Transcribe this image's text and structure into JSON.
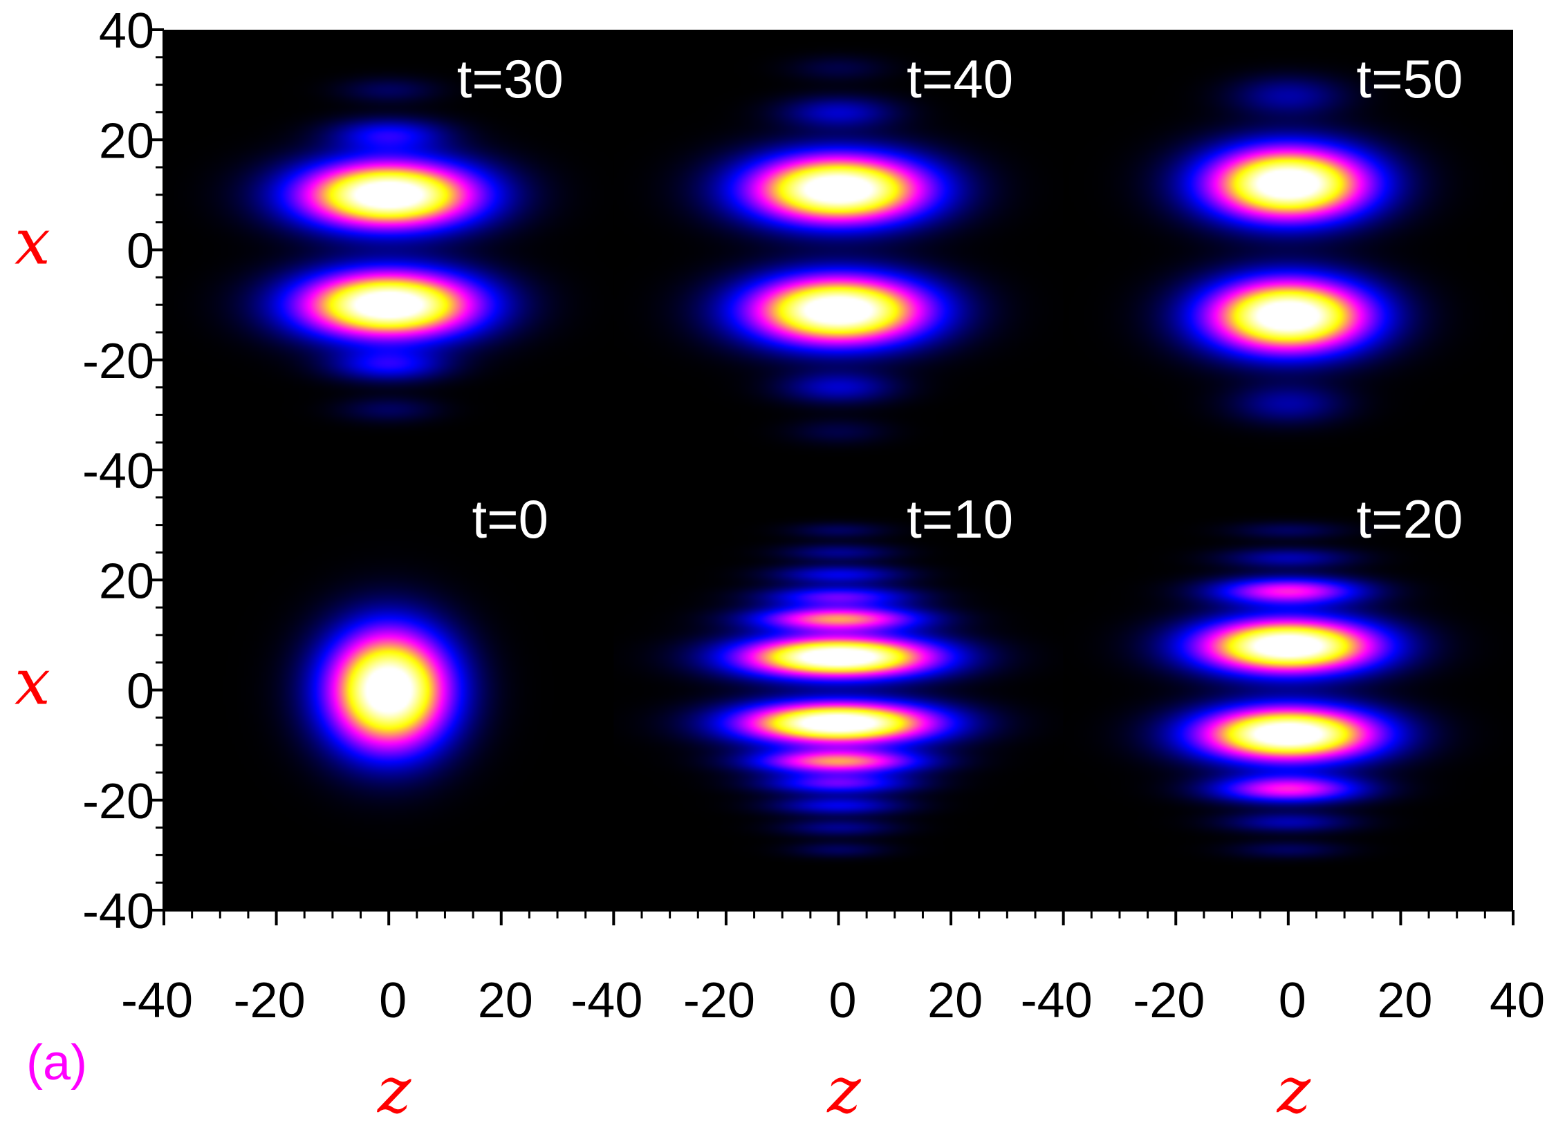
{
  "chart_data": {
    "type": "heatmap",
    "title": "",
    "panel_tag": "(a)",
    "colormap": [
      "#000000",
      "#0000ff",
      "#ff00ff",
      "#ffff00",
      "#ffffff"
    ],
    "colors": {
      "axis_label": "#ff0000",
      "panel_tag": "#ff00ff",
      "time_label": "#ffffff",
      "background": "#000000"
    },
    "grid": false,
    "x_axis": {
      "label": "z",
      "range": [
        -40,
        40
      ],
      "columns": [
        {
          "ticks": [
            "-40",
            "-20",
            "0",
            "20"
          ]
        },
        {
          "ticks": [
            "-40",
            "-20",
            "0",
            "20"
          ]
        },
        {
          "ticks": [
            "-40",
            "-20",
            "0",
            "20",
            "40"
          ]
        }
      ]
    },
    "y_axis": {
      "label": "x",
      "range": [
        -40,
        40
      ],
      "rows": [
        {
          "ticks": [
            "40",
            "20",
            "0",
            "-20",
            "-40"
          ]
        },
        {
          "ticks": [
            "20",
            "0",
            "-20",
            "-40"
          ]
        }
      ]
    },
    "panels": [
      {
        "time": "t=30",
        "row": 0,
        "col": 0,
        "blobs": [
          {
            "z": 0,
            "x": 10,
            "sz": 11,
            "sx": 4.2,
            "amp": 1.0
          },
          {
            "z": 0,
            "x": -10,
            "sz": 11,
            "sx": 4.2,
            "amp": 1.0
          },
          {
            "z": 0,
            "x": 21,
            "sz": 7,
            "sx": 2.0,
            "amp": 0.22
          },
          {
            "z": 0,
            "x": -21,
            "sz": 7,
            "sx": 2.0,
            "amp": 0.22
          },
          {
            "z": 0,
            "x": 29,
            "sz": 6,
            "sx": 1.6,
            "amp": 0.08
          },
          {
            "z": 0,
            "x": -29,
            "sz": 6,
            "sx": 1.6,
            "amp": 0.08
          }
        ]
      },
      {
        "time": "t=40",
        "row": 0,
        "col": 1,
        "blobs": [
          {
            "z": 0,
            "x": 11,
            "sz": 11,
            "sx": 4.3,
            "amp": 1.0
          },
          {
            "z": 0,
            "x": -11,
            "sz": 11,
            "sx": 4.3,
            "amp": 1.0
          },
          {
            "z": 0,
            "x": 25,
            "sz": 7,
            "sx": 2.0,
            "amp": 0.17
          },
          {
            "z": 0,
            "x": -25,
            "sz": 7,
            "sx": 2.0,
            "amp": 0.17
          },
          {
            "z": 0,
            "x": 33,
            "sz": 6,
            "sx": 1.6,
            "amp": 0.06
          },
          {
            "z": 0,
            "x": -33,
            "sz": 6,
            "sx": 1.6,
            "amp": 0.06
          }
        ]
      },
      {
        "time": "t=50",
        "row": 0,
        "col": 2,
        "blobs": [
          {
            "z": 0,
            "x": 12,
            "sz": 10,
            "sx": 4.6,
            "amp": 1.0
          },
          {
            "z": 0,
            "x": -12,
            "sz": 10,
            "sx": 4.6,
            "amp": 1.0
          },
          {
            "z": 0,
            "x": 28,
            "sz": 7,
            "sx": 2.5,
            "amp": 0.14
          },
          {
            "z": 0,
            "x": -28,
            "sz": 7,
            "sx": 2.5,
            "amp": 0.14
          }
        ]
      },
      {
        "time": "t=0",
        "row": 1,
        "col": 0,
        "blobs": [
          {
            "z": 0,
            "x": 0,
            "sz": 7.5,
            "sx": 7.5,
            "amp": 1.0
          }
        ]
      },
      {
        "time": "t=10",
        "row": 1,
        "col": 1,
        "blobs": [
          {
            "z": 0,
            "x": 6,
            "sz": 12,
            "sx": 2.6,
            "amp": 1.0
          },
          {
            "z": 0,
            "x": -6,
            "sz": 12,
            "sx": 2.6,
            "amp": 1.0
          },
          {
            "z": 0,
            "x": 13,
            "sz": 10,
            "sx": 1.5,
            "amp": 0.55
          },
          {
            "z": 0,
            "x": -13,
            "sz": 10,
            "sx": 1.5,
            "amp": 0.55
          },
          {
            "z": 0,
            "x": 17,
            "sz": 9,
            "sx": 1.3,
            "amp": 0.3
          },
          {
            "z": 0,
            "x": -17,
            "sz": 9,
            "sx": 1.3,
            "amp": 0.3
          },
          {
            "z": 0,
            "x": 21,
            "sz": 8,
            "sx": 1.2,
            "amp": 0.2
          },
          {
            "z": 0,
            "x": -21,
            "sz": 8,
            "sx": 1.2,
            "amp": 0.2
          },
          {
            "z": 0,
            "x": 25,
            "sz": 7,
            "sx": 1.1,
            "amp": 0.12
          },
          {
            "z": 0,
            "x": -25,
            "sz": 7,
            "sx": 1.1,
            "amp": 0.12
          },
          {
            "z": 0,
            "x": 29,
            "sz": 6,
            "sx": 1.0,
            "amp": 0.08
          },
          {
            "z": 0,
            "x": -29,
            "sz": 6,
            "sx": 1.0,
            "amp": 0.08
          }
        ]
      },
      {
        "time": "t=20",
        "row": 1,
        "col": 2,
        "blobs": [
          {
            "z": 0,
            "x": 8,
            "sz": 11,
            "sx": 3.4,
            "amp": 1.0
          },
          {
            "z": 0,
            "x": -8,
            "sz": 11,
            "sx": 3.4,
            "amp": 1.0
          },
          {
            "z": 0,
            "x": 18,
            "sz": 9,
            "sx": 1.7,
            "amp": 0.45
          },
          {
            "z": 0,
            "x": -18,
            "sz": 9,
            "sx": 1.7,
            "amp": 0.45
          },
          {
            "z": 0,
            "x": 24,
            "sz": 8,
            "sx": 1.3,
            "amp": 0.15
          },
          {
            "z": 0,
            "x": -24,
            "sz": 8,
            "sx": 1.3,
            "amp": 0.15
          },
          {
            "z": 0,
            "x": 29,
            "sz": 7,
            "sx": 1.1,
            "amp": 0.08
          },
          {
            "z": 0,
            "x": -29,
            "sz": 7,
            "sx": 1.1,
            "amp": 0.08
          }
        ]
      }
    ]
  }
}
